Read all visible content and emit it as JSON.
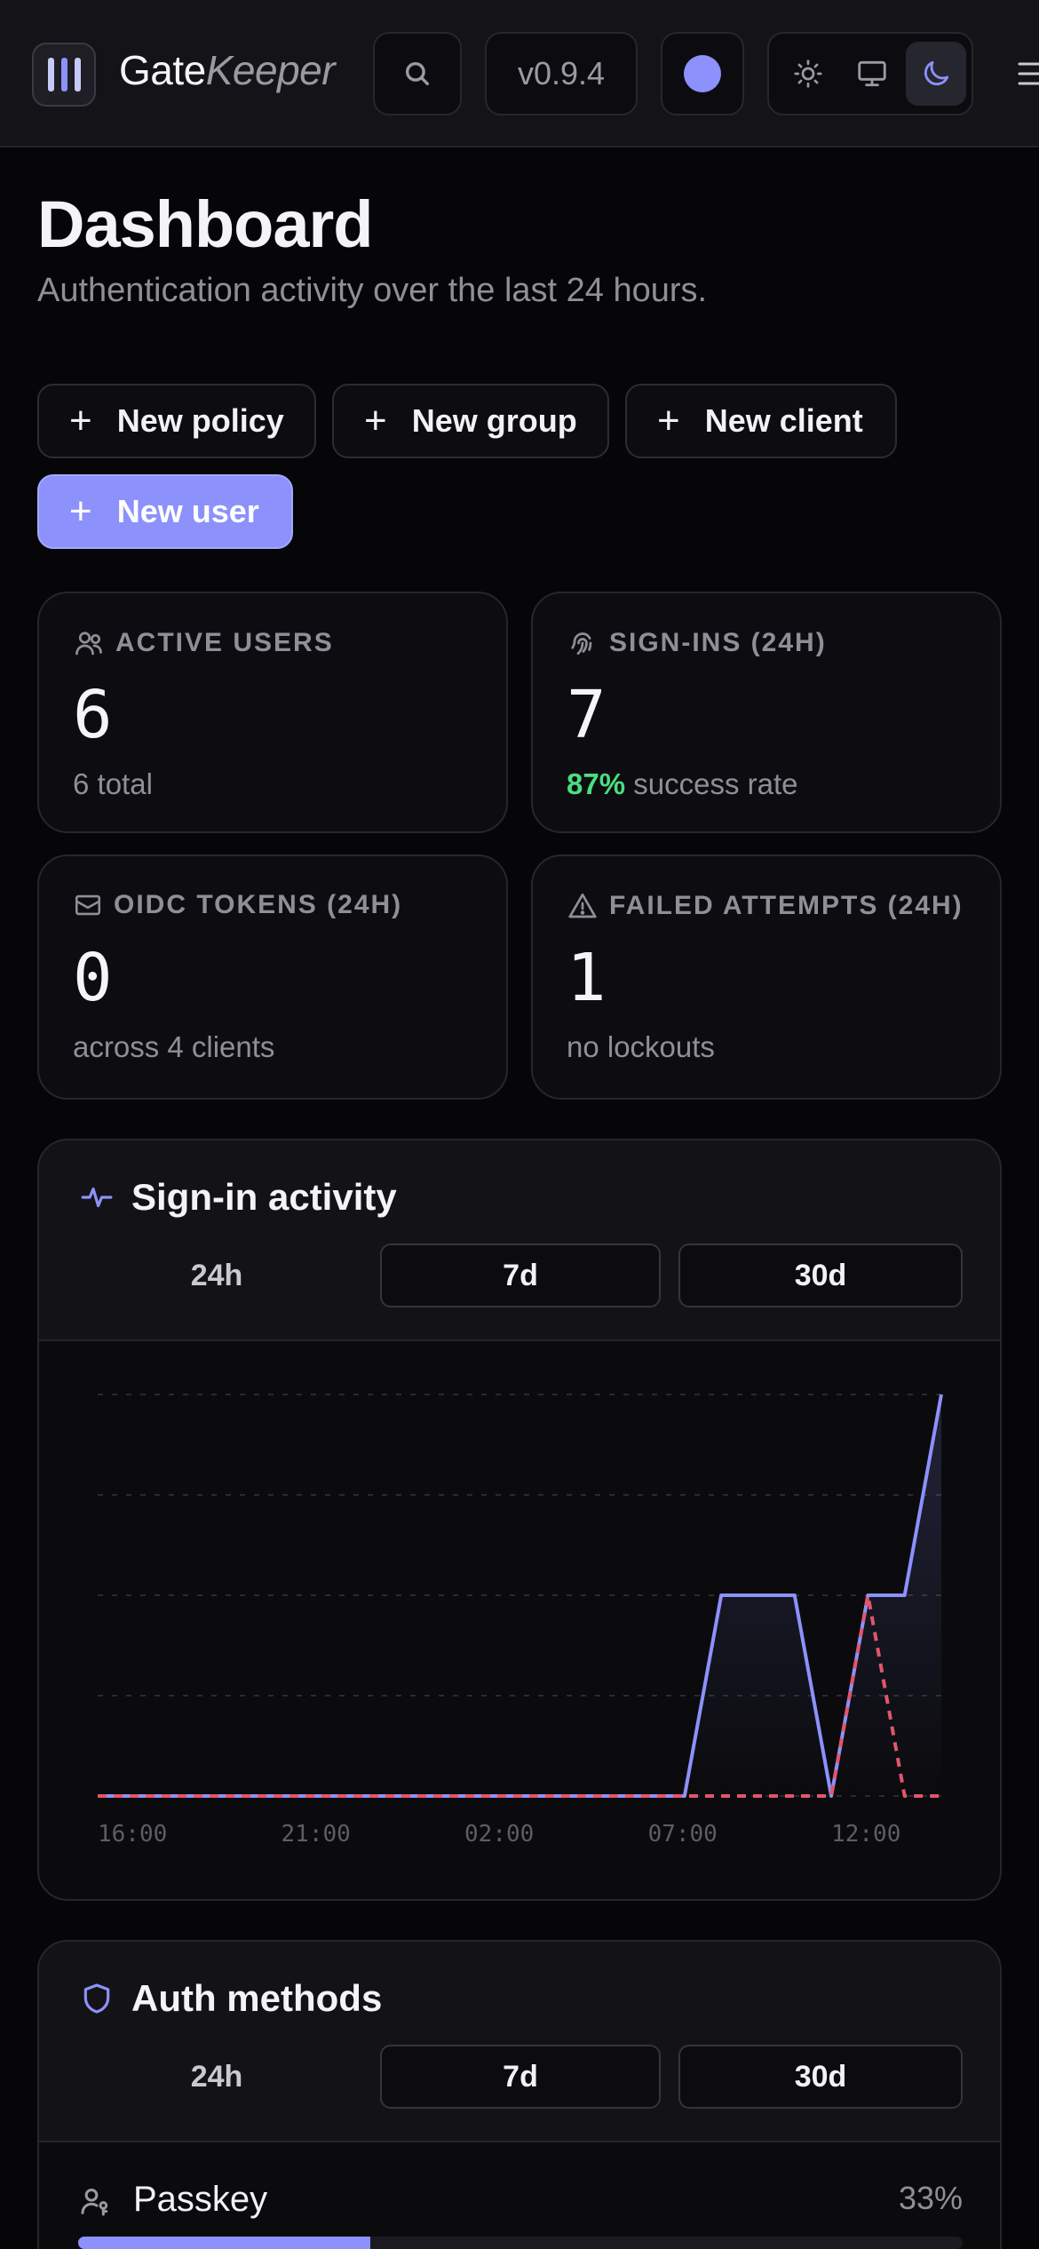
{
  "header": {
    "brand_gate": "Gate",
    "brand_keeper": "Keeper",
    "version": "v0.9.4"
  },
  "page": {
    "title": "Dashboard",
    "subtitle": "Authentication activity over the last 24 hours."
  },
  "actions": {
    "new_policy": "New policy",
    "new_group": "New group",
    "new_client": "New client",
    "new_user": "New user"
  },
  "stats": {
    "active_users": {
      "label": "ACTIVE USERS",
      "value": "6",
      "foot": "6 total"
    },
    "sign_ins": {
      "label": "SIGN-INS (24H)",
      "value": "7",
      "rate": "87%",
      "foot": "success rate"
    },
    "oidc_tokens": {
      "label": "OIDC TOKENS (24H)",
      "value": "0",
      "foot": "across 4 clients"
    },
    "failed": {
      "label": "FAILED ATTEMPTS (24H)",
      "value": "1",
      "foot": "no lockouts"
    }
  },
  "activity": {
    "title": "Sign-in activity",
    "ranges": [
      "24h",
      "7d",
      "30d"
    ],
    "selected_range": "24h"
  },
  "auth_methods": {
    "title": "Auth methods",
    "ranges": [
      "24h",
      "7d",
      "30d"
    ],
    "selected_range": "24h",
    "items": [
      {
        "label": "Passkey",
        "percent_label": "33%",
        "percent": 33
      }
    ]
  },
  "colors": {
    "accent": "#8c91fb",
    "success": "#4ade80",
    "failure": "#e0566b"
  },
  "chart_data": {
    "type": "line",
    "x": [
      "16:00",
      "17:00",
      "18:00",
      "19:00",
      "20:00",
      "21:00",
      "22:00",
      "23:00",
      "00:00",
      "01:00",
      "02:00",
      "03:00",
      "04:00",
      "05:00",
      "06:00",
      "07:00",
      "08:00",
      "09:00",
      "10:00",
      "11:00",
      "12:00",
      "13:00",
      "14:00",
      "15:00"
    ],
    "xticks": [
      "16:00",
      "21:00",
      "02:00",
      "07:00",
      "12:00"
    ],
    "series": [
      {
        "values": [
          0,
          0,
          0,
          0,
          0,
          0,
          0,
          0,
          0,
          0,
          0,
          0,
          0,
          0,
          0,
          0,
          0,
          2,
          2,
          2,
          0,
          2,
          2,
          4
        ]
      },
      {
        "values": [
          0,
          0,
          0,
          0,
          0,
          0,
          0,
          0,
          0,
          0,
          0,
          0,
          0,
          0,
          0,
          0,
          0,
          0,
          0,
          0,
          0,
          2,
          0,
          0
        ]
      }
    ],
    "ylim": [
      0,
      4
    ],
    "grid": true
  }
}
